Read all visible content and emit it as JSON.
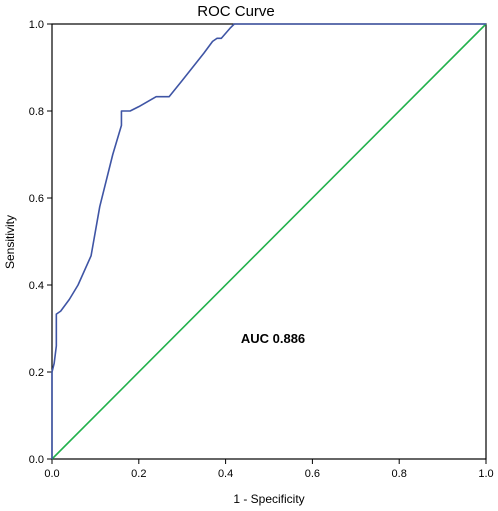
{
  "chart_data": {
    "type": "line",
    "title": "ROC Curve",
    "xlabel": "1 - Specificity",
    "ylabel": "Sensitivity",
    "xlim": [
      0,
      1
    ],
    "ylim": [
      0,
      1
    ],
    "x_ticks": [
      "0.0",
      "0.2",
      "0.4",
      "0.6",
      "0.8",
      "1.0"
    ],
    "y_ticks": [
      "0.0",
      "0.2",
      "0.4",
      "0.6",
      "0.8",
      "1.0"
    ],
    "grid": false,
    "annotation": "AUC 0.886",
    "series": [
      {
        "color": "#3f55a5",
        "x": [
          0.0,
          0.0,
          0.005,
          0.01,
          0.01,
          0.02,
          0.04,
          0.06,
          0.09,
          0.11,
          0.14,
          0.16,
          0.16,
          0.18,
          0.2,
          0.24,
          0.27,
          0.3,
          0.35,
          0.37,
          0.38,
          0.39,
          0.41,
          0.42,
          1.0
        ],
        "y": [
          0.0,
          0.2,
          0.22,
          0.26,
          0.333,
          0.34,
          0.367,
          0.4,
          0.467,
          0.58,
          0.7,
          0.767,
          0.8,
          0.8,
          0.81,
          0.833,
          0.833,
          0.87,
          0.933,
          0.96,
          0.967,
          0.967,
          0.99,
          1.0,
          1.0
        ]
      },
      {
        "color": "#22b14c",
        "x": [
          0,
          1
        ],
        "y": [
          0,
          1
        ]
      }
    ]
  }
}
